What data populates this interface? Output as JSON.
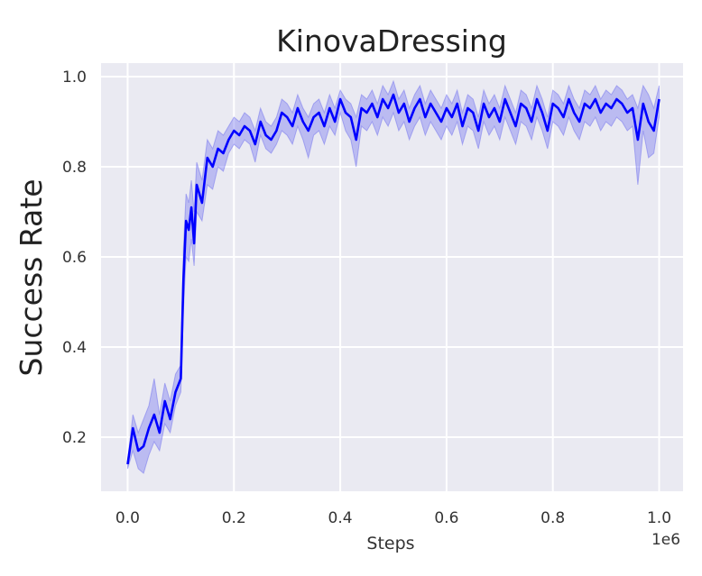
{
  "chart_data": {
    "type": "line",
    "title": "KinovaDressing",
    "xlabel": "Steps",
    "ylabel": "Success Rate",
    "x_offset_label": "1e6",
    "xlim": [
      -0.05,
      1.045
    ],
    "ylim": [
      0.08,
      1.03
    ],
    "x_ticks": [
      0.0,
      0.2,
      0.4,
      0.6,
      0.8,
      1.0
    ],
    "x_tick_labels": [
      "0.0",
      "0.2",
      "0.4",
      "0.6",
      "0.8",
      "1.0"
    ],
    "y_ticks": [
      0.2,
      0.4,
      0.6,
      0.8,
      1.0
    ],
    "y_tick_labels": [
      "0.2",
      "0.4",
      "0.6",
      "0.8",
      "1.0"
    ],
    "grid": true,
    "background": "#eaeaf2",
    "series": [
      {
        "color": "#0000ff",
        "band_color": "#6f6ff0",
        "x": [
          0.0,
          0.01,
          0.02,
          0.03,
          0.04,
          0.05,
          0.06,
          0.07,
          0.08,
          0.09,
          0.1,
          0.105,
          0.11,
          0.115,
          0.12,
          0.125,
          0.13,
          0.14,
          0.15,
          0.16,
          0.17,
          0.18,
          0.19,
          0.2,
          0.21,
          0.22,
          0.23,
          0.24,
          0.25,
          0.26,
          0.27,
          0.28,
          0.29,
          0.3,
          0.31,
          0.32,
          0.33,
          0.34,
          0.35,
          0.36,
          0.37,
          0.38,
          0.39,
          0.4,
          0.41,
          0.42,
          0.43,
          0.44,
          0.45,
          0.46,
          0.47,
          0.48,
          0.49,
          0.5,
          0.51,
          0.52,
          0.53,
          0.54,
          0.55,
          0.56,
          0.57,
          0.58,
          0.59,
          0.6,
          0.61,
          0.62,
          0.63,
          0.64,
          0.65,
          0.66,
          0.67,
          0.68,
          0.69,
          0.7,
          0.71,
          0.72,
          0.73,
          0.74,
          0.75,
          0.76,
          0.77,
          0.78,
          0.79,
          0.8,
          0.81,
          0.82,
          0.83,
          0.84,
          0.85,
          0.86,
          0.87,
          0.88,
          0.89,
          0.9,
          0.91,
          0.92,
          0.93,
          0.94,
          0.95,
          0.96,
          0.97,
          0.98,
          0.99,
          1.0
        ],
        "values": [
          0.14,
          0.22,
          0.17,
          0.18,
          0.22,
          0.25,
          0.21,
          0.28,
          0.24,
          0.3,
          0.33,
          0.55,
          0.68,
          0.66,
          0.71,
          0.63,
          0.76,
          0.72,
          0.82,
          0.8,
          0.84,
          0.83,
          0.86,
          0.88,
          0.87,
          0.89,
          0.88,
          0.85,
          0.9,
          0.87,
          0.86,
          0.88,
          0.92,
          0.91,
          0.89,
          0.93,
          0.9,
          0.88,
          0.91,
          0.92,
          0.89,
          0.93,
          0.9,
          0.95,
          0.92,
          0.91,
          0.86,
          0.93,
          0.92,
          0.94,
          0.91,
          0.95,
          0.93,
          0.96,
          0.92,
          0.94,
          0.9,
          0.93,
          0.95,
          0.91,
          0.94,
          0.92,
          0.9,
          0.93,
          0.91,
          0.94,
          0.89,
          0.93,
          0.92,
          0.88,
          0.94,
          0.91,
          0.93,
          0.9,
          0.95,
          0.92,
          0.89,
          0.94,
          0.93,
          0.9,
          0.95,
          0.92,
          0.88,
          0.94,
          0.93,
          0.91,
          0.95,
          0.92,
          0.9,
          0.94,
          0.93,
          0.95,
          0.92,
          0.94,
          0.93,
          0.95,
          0.94,
          0.92,
          0.93,
          0.86,
          0.94,
          0.9,
          0.88,
          0.95
        ],
        "lower": [
          0.13,
          0.17,
          0.13,
          0.12,
          0.16,
          0.19,
          0.17,
          0.23,
          0.21,
          0.27,
          0.3,
          0.48,
          0.6,
          0.59,
          0.64,
          0.58,
          0.7,
          0.68,
          0.76,
          0.75,
          0.8,
          0.79,
          0.83,
          0.85,
          0.84,
          0.86,
          0.85,
          0.81,
          0.87,
          0.84,
          0.83,
          0.85,
          0.88,
          0.87,
          0.85,
          0.89,
          0.86,
          0.82,
          0.87,
          0.88,
          0.85,
          0.89,
          0.87,
          0.92,
          0.88,
          0.86,
          0.8,
          0.89,
          0.88,
          0.9,
          0.87,
          0.91,
          0.89,
          0.92,
          0.88,
          0.9,
          0.86,
          0.89,
          0.91,
          0.87,
          0.9,
          0.88,
          0.86,
          0.89,
          0.87,
          0.9,
          0.85,
          0.89,
          0.88,
          0.84,
          0.9,
          0.87,
          0.89,
          0.86,
          0.91,
          0.88,
          0.85,
          0.9,
          0.89,
          0.86,
          0.91,
          0.88,
          0.84,
          0.9,
          0.89,
          0.87,
          0.91,
          0.88,
          0.86,
          0.9,
          0.89,
          0.91,
          0.88,
          0.9,
          0.89,
          0.91,
          0.9,
          0.88,
          0.89,
          0.76,
          0.88,
          0.82,
          0.83,
          0.91
        ],
        "upper": [
          0.15,
          0.25,
          0.21,
          0.24,
          0.27,
          0.33,
          0.25,
          0.32,
          0.28,
          0.34,
          0.36,
          0.62,
          0.74,
          0.72,
          0.77,
          0.7,
          0.81,
          0.77,
          0.86,
          0.84,
          0.88,
          0.87,
          0.89,
          0.91,
          0.9,
          0.92,
          0.91,
          0.88,
          0.93,
          0.9,
          0.89,
          0.91,
          0.95,
          0.94,
          0.92,
          0.96,
          0.93,
          0.91,
          0.94,
          0.95,
          0.92,
          0.96,
          0.93,
          0.97,
          0.95,
          0.94,
          0.91,
          0.96,
          0.95,
          0.97,
          0.94,
          0.98,
          0.96,
          0.99,
          0.95,
          0.97,
          0.93,
          0.96,
          0.98,
          0.94,
          0.97,
          0.95,
          0.93,
          0.96,
          0.94,
          0.97,
          0.92,
          0.96,
          0.95,
          0.91,
          0.97,
          0.94,
          0.96,
          0.93,
          0.98,
          0.95,
          0.92,
          0.97,
          0.96,
          0.93,
          0.98,
          0.95,
          0.91,
          0.97,
          0.96,
          0.94,
          0.98,
          0.95,
          0.93,
          0.97,
          0.96,
          0.98,
          0.95,
          0.97,
          0.96,
          0.98,
          0.97,
          0.95,
          0.96,
          0.93,
          0.98,
          0.96,
          0.93,
          0.98
        ]
      }
    ]
  }
}
